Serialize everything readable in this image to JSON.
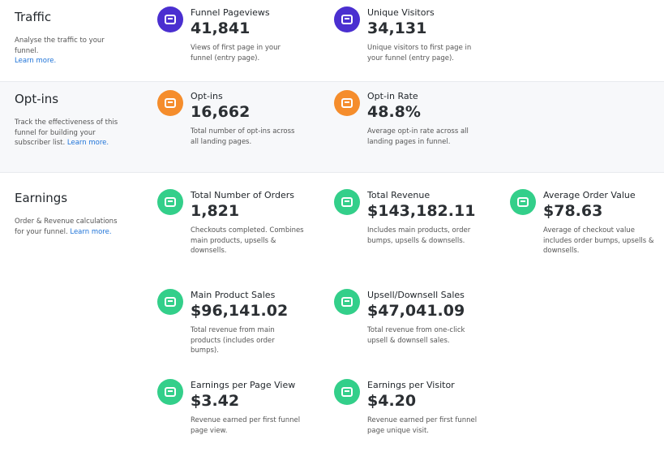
{
  "sections": [
    {
      "title": "Traffic",
      "description": "Analyse the traffic to your funnel.",
      "link": "Learn more.",
      "metrics": [
        {
          "label": "Funnel Pageviews",
          "value": "41,841",
          "description": "Views of first page in your funnel (entry page)."
        },
        {
          "label": "Unique Visitors",
          "value": "34,131",
          "description": "Unique visitors to first page in your funnel (entry page)."
        }
      ]
    },
    {
      "title": "Opt-ins",
      "description": "Track the effectiveness of this funnel for building your subscriber list.",
      "link": "Learn more.",
      "metrics": [
        {
          "label": "Opt-ins",
          "value": "16,662",
          "description": "Total number of opt-ins across all landing pages."
        },
        {
          "label": "Opt-in Rate",
          "value": "48.8%",
          "description": "Average opt-in rate across all landing pages in funnel."
        }
      ]
    },
    {
      "title": "Earnings",
      "description": "Order & Revenue calculations for your funnel.",
      "link": "Learn more.",
      "metrics": [
        {
          "label": "Total Number of Orders",
          "value": "1,821",
          "description": "Checkouts completed. Combines main products, upsells & downsells."
        },
        {
          "label": "Total Revenue",
          "value": "$143,182.11",
          "description": "Includes main products, order bumps, upsells & downsells."
        },
        {
          "label": "Average Order Value",
          "value": "$78.63",
          "description": "Average of checkout value includes order bumps, upsells & downsells."
        },
        {
          "label": "Main Product Sales",
          "value": "$96,141.02",
          "description": "Total revenue from main products (includes order bumps)."
        },
        {
          "label": "Upsell/Downsell Sales",
          "value": "$47,041.09",
          "description": "Total revenue from one-click upsell & downsell sales."
        },
        {
          "label": "Earnings per Page View",
          "value": "$3.42",
          "description": "Revenue earned per first funnel page view."
        },
        {
          "label": "Earnings per Visitor",
          "value": "$4.20",
          "description": "Revenue earned per first funnel page unique visit."
        }
      ]
    }
  ]
}
